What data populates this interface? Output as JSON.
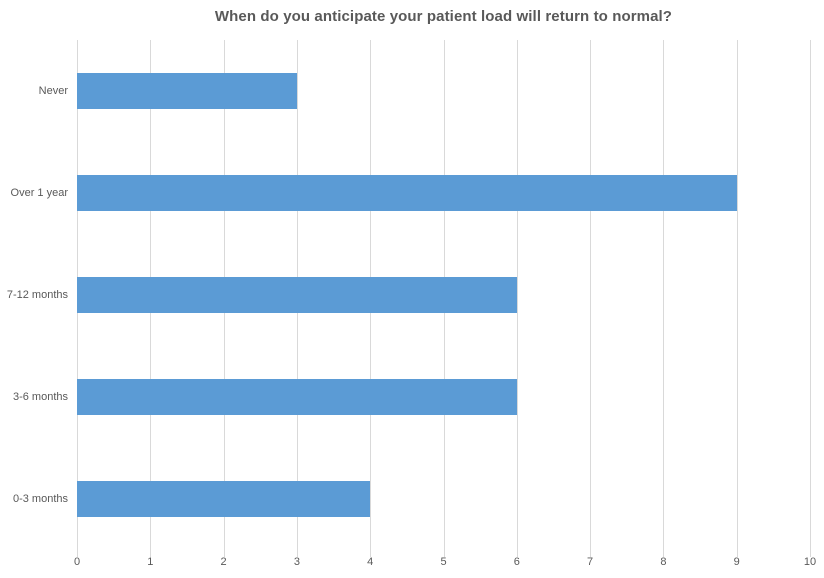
{
  "chart_data": {
    "type": "bar",
    "orientation": "horizontal",
    "title": "When do you anticipate your patient load will return to normal?",
    "categories": [
      "Never",
      "Over 1 year",
      "7-12 months",
      "3-6 months",
      "0-3 months"
    ],
    "categories_order": "top-to-bottom",
    "values": [
      3,
      9,
      6,
      6,
      4
    ],
    "xlabel": "",
    "ylabel": "",
    "xlim": [
      0,
      10
    ],
    "x_ticks": [
      0,
      1,
      2,
      3,
      4,
      5,
      6,
      7,
      8,
      9,
      10
    ],
    "grid": "vertical-major-only",
    "legend": "none",
    "data_labels": "none",
    "colors": {
      "bar": "#5b9bd5",
      "gridline": "#d9d9d9",
      "text": "#595959",
      "title": "#595959",
      "background": "#ffffff"
    }
  }
}
